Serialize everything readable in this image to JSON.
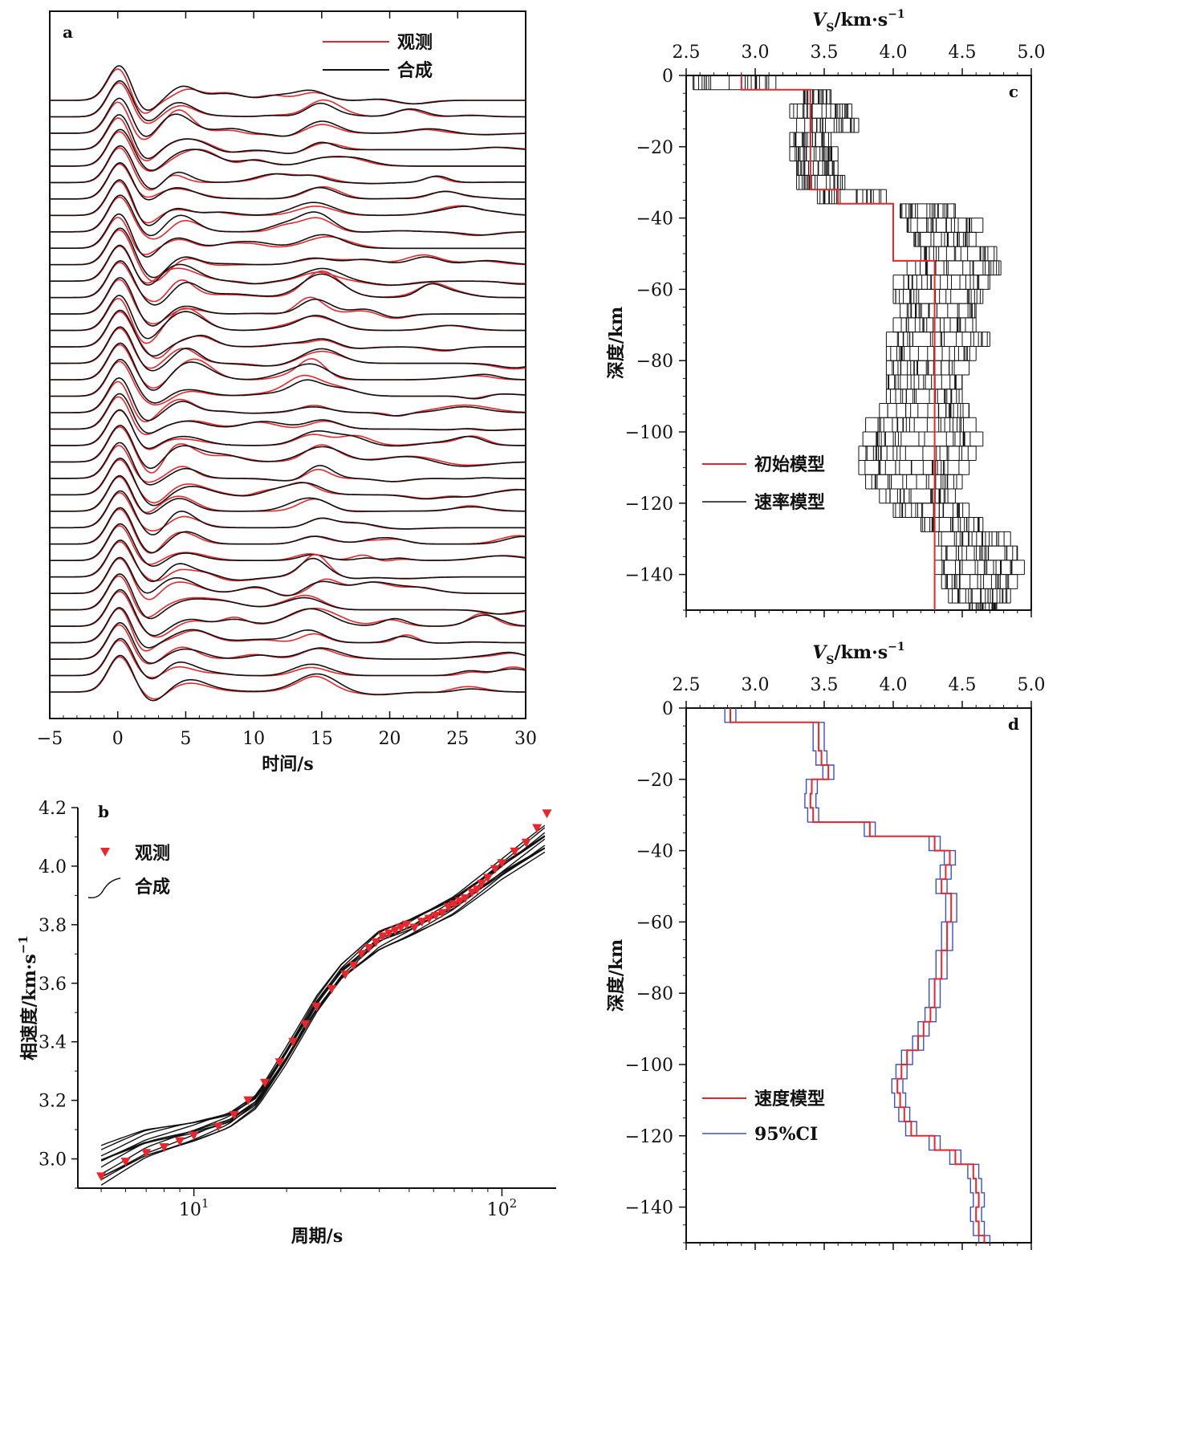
{
  "figure": {
    "colors": {
      "observed": "#e8262b",
      "synthetic": "#111111",
      "ci": "#3a4fd0",
      "model_red": "#e8262b"
    }
  },
  "panel_a": {
    "chart_data": {
      "type": "line",
      "letter": "a",
      "xlabel": "时间/s",
      "xlim": [
        -5,
        30
      ],
      "xticks": [
        "−5",
        "0",
        "5",
        "10",
        "15",
        "20",
        "25",
        "30"
      ],
      "legend": {
        "observed": "观测",
        "synthetic": "合成"
      },
      "n_traces": 37,
      "trace_count_note": "37 stacked receiver-function traces, observed (red) vs synthetic (black)",
      "main_pulse": {
        "time": 0.2,
        "amplitude": 1.0,
        "width": 0.9
      },
      "secondary_pulses": [
        {
          "time": 4.8,
          "amplitude": 0.35
        },
        {
          "time": 14.5,
          "amplitude": 0.3
        }
      ]
    }
  },
  "panel_b": {
    "chart_data": {
      "type": "line",
      "letter": "b",
      "xlabel": "周期/s",
      "ylabel": "相速度/km·s",
      "ylabel_sup": "−1",
      "xscale": "log",
      "xlim": [
        4.2,
        150
      ],
      "ylim": [
        2.9,
        4.2
      ],
      "xticks": [
        {
          "value": 10,
          "base": "10",
          "exp": "1"
        },
        {
          "value": 100,
          "base": "10",
          "exp": "2"
        }
      ],
      "yticks": [
        "3.0",
        "3.2",
        "3.4",
        "3.6",
        "3.8",
        "4.0",
        "4.2"
      ],
      "legend": {
        "observed": "观测",
        "synthetic": "合成"
      },
      "observed": {
        "period": [
          5,
          6,
          7,
          8,
          9,
          10,
          12,
          13.5,
          15,
          17,
          19,
          21,
          23,
          25,
          28,
          31,
          33,
          35,
          37,
          39,
          41,
          43,
          45,
          47,
          49,
          52,
          55,
          58,
          61,
          64,
          67,
          70,
          73,
          76,
          80,
          83,
          86,
          90,
          95,
          100,
          110,
          120,
          130,
          140
        ],
        "velocity": [
          2.94,
          2.99,
          3.02,
          3.04,
          3.06,
          3.08,
          3.11,
          3.15,
          3.2,
          3.26,
          3.33,
          3.4,
          3.46,
          3.52,
          3.58,
          3.63,
          3.66,
          3.7,
          3.72,
          3.74,
          3.76,
          3.77,
          3.78,
          3.79,
          3.8,
          3.79,
          3.81,
          3.82,
          3.83,
          3.84,
          3.86,
          3.87,
          3.88,
          3.89,
          3.91,
          3.92,
          3.94,
          3.96,
          3.99,
          4.01,
          4.05,
          4.08,
          4.13,
          4.18
        ]
      },
      "synthetic_envelope": {
        "period": [
          5,
          7,
          10,
          13,
          16,
          20,
          25,
          30,
          40,
          50,
          70,
          100,
          140
        ],
        "low": [
          2.91,
          3.0,
          3.06,
          3.11,
          3.18,
          3.33,
          3.5,
          3.61,
          3.71,
          3.76,
          3.84,
          3.96,
          4.05
        ],
        "high": [
          3.04,
          3.1,
          3.13,
          3.16,
          3.22,
          3.38,
          3.55,
          3.66,
          3.78,
          3.82,
          3.9,
          4.02,
          4.14
        ]
      },
      "n_synthetic": 12
    }
  },
  "panel_c": {
    "chart_data": {
      "type": "line",
      "letter": "c",
      "xlabel_base": "V",
      "xlabel_sub": "S",
      "xlabel_rest": "/km·s",
      "xlabel_sup": "−1",
      "ylabel": "深度/km",
      "xlim": [
        2.5,
        5.0
      ],
      "ylim": [
        -150,
        0
      ],
      "xticks": [
        "2.5",
        "3.0",
        "3.5",
        "4.0",
        "4.5",
        "5.0"
      ],
      "yticks": [
        "0",
        "−20",
        "−40",
        "−60",
        "−80",
        "−100",
        "−120",
        "−140"
      ],
      "legend": {
        "initial": "初始模型",
        "ensemble": "速率模型"
      },
      "initial_model": {
        "depth": [
          0,
          -4,
          -4,
          -32,
          -32,
          -36,
          -36,
          -52,
          -52,
          -150
        ],
        "vs": [
          2.9,
          2.9,
          3.4,
          3.4,
          3.6,
          3.6,
          4.0,
          4.0,
          4.3,
          4.3
        ]
      },
      "ensemble_layers": [
        {
          "top": 0,
          "bottom": -4,
          "lo": 2.55,
          "hi": 3.15
        },
        {
          "top": -4,
          "bottom": -8,
          "lo": 3.35,
          "hi": 3.55
        },
        {
          "top": -8,
          "bottom": -12,
          "lo": 3.25,
          "hi": 3.7
        },
        {
          "top": -12,
          "bottom": -16,
          "lo": 3.3,
          "hi": 3.75
        },
        {
          "top": -16,
          "bottom": -20,
          "lo": 3.25,
          "hi": 3.55
        },
        {
          "top": -20,
          "bottom": -24,
          "lo": 3.25,
          "hi": 3.6
        },
        {
          "top": -24,
          "bottom": -28,
          "lo": 3.3,
          "hi": 3.6
        },
        {
          "top": -28,
          "bottom": -32,
          "lo": 3.3,
          "hi": 3.65
        },
        {
          "top": -32,
          "bottom": -36,
          "lo": 3.45,
          "hi": 3.95
        },
        {
          "top": -36,
          "bottom": -40,
          "lo": 4.05,
          "hi": 4.45
        },
        {
          "top": -40,
          "bottom": -44,
          "lo": 4.1,
          "hi": 4.65
        },
        {
          "top": -44,
          "bottom": -48,
          "lo": 4.15,
          "hi": 4.6
        },
        {
          "top": -48,
          "bottom": -52,
          "lo": 4.2,
          "hi": 4.75
        },
        {
          "top": -52,
          "bottom": -56,
          "lo": 4.1,
          "hi": 4.78
        },
        {
          "top": -56,
          "bottom": -60,
          "lo": 4.0,
          "hi": 4.7
        },
        {
          "top": -60,
          "bottom": -64,
          "lo": 4.0,
          "hi": 4.65
        },
        {
          "top": -64,
          "bottom": -68,
          "lo": 4.05,
          "hi": 4.6
        },
        {
          "top": -68,
          "bottom": -72,
          "lo": 4.0,
          "hi": 4.6
        },
        {
          "top": -72,
          "bottom": -76,
          "lo": 3.95,
          "hi": 4.7
        },
        {
          "top": -76,
          "bottom": -80,
          "lo": 3.95,
          "hi": 4.6
        },
        {
          "top": -80,
          "bottom": -84,
          "lo": 3.95,
          "hi": 4.55
        },
        {
          "top": -84,
          "bottom": -88,
          "lo": 3.95,
          "hi": 4.5
        },
        {
          "top": -88,
          "bottom": -92,
          "lo": 3.95,
          "hi": 4.5
        },
        {
          "top": -92,
          "bottom": -96,
          "lo": 3.9,
          "hi": 4.55
        },
        {
          "top": -96,
          "bottom": -100,
          "lo": 3.8,
          "hi": 4.6
        },
        {
          "top": -100,
          "bottom": -104,
          "lo": 3.78,
          "hi": 4.65
        },
        {
          "top": -104,
          "bottom": -108,
          "lo": 3.75,
          "hi": 4.6
        },
        {
          "top": -108,
          "bottom": -112,
          "lo": 3.75,
          "hi": 4.55
        },
        {
          "top": -112,
          "bottom": -116,
          "lo": 3.8,
          "hi": 4.5
        },
        {
          "top": -116,
          "bottom": -120,
          "lo": 3.9,
          "hi": 4.45
        },
        {
          "top": -120,
          "bottom": -124,
          "lo": 4.0,
          "hi": 4.55
        },
        {
          "top": -124,
          "bottom": -128,
          "lo": 4.2,
          "hi": 4.65
        },
        {
          "top": -128,
          "bottom": -132,
          "lo": 4.3,
          "hi": 4.85
        },
        {
          "top": -132,
          "bottom": -136,
          "lo": 4.35,
          "hi": 4.9
        },
        {
          "top": -136,
          "bottom": -140,
          "lo": 4.3,
          "hi": 4.95
        },
        {
          "top": -140,
          "bottom": -144,
          "lo": 4.35,
          "hi": 4.9
        },
        {
          "top": -144,
          "bottom": -148,
          "lo": 4.4,
          "hi": 4.85
        },
        {
          "top": -148,
          "bottom": -150,
          "lo": 4.55,
          "hi": 4.75
        }
      ]
    }
  },
  "panel_d": {
    "chart_data": {
      "type": "line",
      "letter": "d",
      "xlabel_base": "V",
      "xlabel_sub": "S",
      "xlabel_rest": "/km·s",
      "xlabel_sup": "−1",
      "ylabel": "深度/km",
      "xlim": [
        2.5,
        5.0
      ],
      "ylim": [
        -150,
        0
      ],
      "xticks": [
        "2.5",
        "3.0",
        "3.5",
        "4.0",
        "4.5",
        "5.0"
      ],
      "yticks": [
        "0",
        "−20",
        "−40",
        "−60",
        "−80",
        "−100",
        "−120",
        "−140"
      ],
      "legend": {
        "model": "速度模型",
        "ci": "95%CI"
      },
      "ci_half_width": 0.04,
      "mean_model": {
        "layers": [
          {
            "top": 0,
            "bottom": -4,
            "vs": 2.82
          },
          {
            "top": -4,
            "bottom": -12,
            "vs": 3.46
          },
          {
            "top": -12,
            "bottom": -16,
            "vs": 3.48
          },
          {
            "top": -16,
            "bottom": -20,
            "vs": 3.53
          },
          {
            "top": -20,
            "bottom": -24,
            "vs": 3.41
          },
          {
            "top": -24,
            "bottom": -28,
            "vs": 3.4
          },
          {
            "top": -28,
            "bottom": -32,
            "vs": 3.42
          },
          {
            "top": -32,
            "bottom": -36,
            "vs": 3.83
          },
          {
            "top": -36,
            "bottom": -40,
            "vs": 4.3
          },
          {
            "top": -40,
            "bottom": -44,
            "vs": 4.41
          },
          {
            "top": -44,
            "bottom": -48,
            "vs": 4.38
          },
          {
            "top": -48,
            "bottom": -52,
            "vs": 4.35
          },
          {
            "top": -52,
            "bottom": -60,
            "vs": 4.42
          },
          {
            "top": -60,
            "bottom": -68,
            "vs": 4.39
          },
          {
            "top": -68,
            "bottom": -76,
            "vs": 4.35
          },
          {
            "top": -76,
            "bottom": -84,
            "vs": 4.3
          },
          {
            "top": -84,
            "bottom": -88,
            "vs": 4.27
          },
          {
            "top": -88,
            "bottom": -92,
            "vs": 4.22
          },
          {
            "top": -92,
            "bottom": -96,
            "vs": 4.18
          },
          {
            "top": -96,
            "bottom": -100,
            "vs": 4.1
          },
          {
            "top": -100,
            "bottom": -104,
            "vs": 4.06
          },
          {
            "top": -104,
            "bottom": -108,
            "vs": 4.03
          },
          {
            "top": -108,
            "bottom": -112,
            "vs": 4.05
          },
          {
            "top": -112,
            "bottom": -116,
            "vs": 4.08
          },
          {
            "top": -116,
            "bottom": -120,
            "vs": 4.13
          },
          {
            "top": -120,
            "bottom": -124,
            "vs": 4.3
          },
          {
            "top": -124,
            "bottom": -128,
            "vs": 4.45
          },
          {
            "top": -128,
            "bottom": -132,
            "vs": 4.58
          },
          {
            "top": -132,
            "bottom": -136,
            "vs": 4.6
          },
          {
            "top": -136,
            "bottom": -140,
            "vs": 4.62
          },
          {
            "top": -140,
            "bottom": -144,
            "vs": 4.6
          },
          {
            "top": -144,
            "bottom": -148,
            "vs": 4.62
          },
          {
            "top": -148,
            "bottom": -150,
            "vs": 4.66
          }
        ]
      }
    }
  }
}
